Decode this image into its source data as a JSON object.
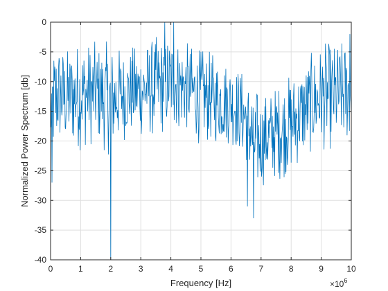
{
  "chart_data": {
    "type": "line",
    "title": "",
    "xlabel": "Frequency [Hz]",
    "ylabel": "Normalized Power Spectrum [db]",
    "x_multiplier_label": "×10",
    "x_multiplier_exponent": "6",
    "xlim": [
      0,
      10000000
    ],
    "ylim": [
      -40,
      0
    ],
    "xticks": [
      0,
      1000000,
      2000000,
      3000000,
      4000000,
      5000000,
      6000000,
      7000000,
      8000000,
      9000000,
      10000000
    ],
    "xtick_labels": [
      "0",
      "1",
      "2",
      "3",
      "4",
      "5",
      "6",
      "7",
      "8",
      "9",
      "10"
    ],
    "yticks": [
      0,
      -5,
      -10,
      -15,
      -20,
      -25,
      -30,
      -35,
      -40
    ],
    "ytick_labels": [
      "0",
      "-5",
      "-10",
      "-15",
      "-20",
      "-25",
      "-30",
      "-35",
      "-40"
    ],
    "grid": true,
    "legend": "none",
    "series": [
      {
        "color": "#0072BD",
        "envelope": {
          "x": [
            0,
            250000,
            500000,
            1000000,
            1500000,
            2000000,
            2500000,
            3000000,
            3500000,
            4000000,
            4500000,
            5000000,
            5500000,
            6000000,
            6500000,
            6800000,
            7000000,
            7500000,
            8000000,
            8500000,
            9000000,
            9500000,
            10000000
          ],
          "upper": [
            -3,
            -2,
            -4,
            -2,
            -3,
            -3,
            -4,
            -3,
            -2,
            -1,
            -3,
            -4,
            -5,
            -6,
            -8,
            -10,
            -12,
            -10,
            -8,
            -6,
            -3,
            -3,
            -2
          ],
          "lower": [
            -26,
            -22,
            -22,
            -22,
            -21,
            -23,
            -20,
            -20,
            -20,
            -19,
            -19,
            -21,
            -21,
            -21,
            -24,
            -31,
            -28,
            -27,
            -26,
            -23,
            -22,
            -22,
            -21
          ]
        },
        "deep_dips": [
          {
            "x": 2000000,
            "y": -40
          },
          {
            "x": 6750000,
            "y": -33
          },
          {
            "x": 6550000,
            "y": -31
          },
          {
            "x": 40000,
            "y": -27
          }
        ],
        "peaks": [
          {
            "x": 3800000,
            "y": 0
          },
          {
            "x": 4100000,
            "y": 0
          },
          {
            "x": 9950000,
            "y": -2
          }
        ],
        "sample_count": 640
      }
    ]
  }
}
